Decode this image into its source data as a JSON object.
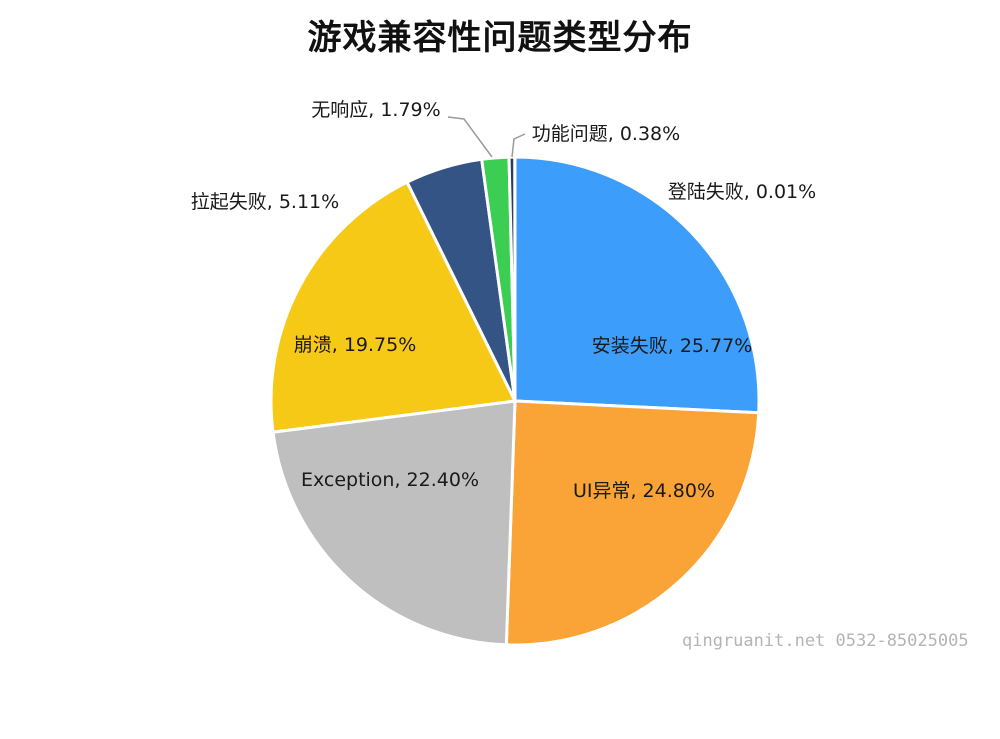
{
  "chart_data": {
    "type": "pie",
    "title": "游戏兼容性问题类型分布",
    "legend": "none",
    "slices": [
      {
        "label": "安装失败",
        "value": 25.77,
        "value_text": "25.77%",
        "color": "#3d9dfb"
      },
      {
        "label": "UI异常",
        "value": 24.8,
        "value_text": "24.80%",
        "color": "#faa337"
      },
      {
        "label": "Exception",
        "value": 22.4,
        "value_text": "22.40%",
        "color": "#bfbfbf"
      },
      {
        "label": "崩溃",
        "value": 19.75,
        "value_text": "19.75%",
        "color": "#f6c917"
      },
      {
        "label": "拉起失败",
        "value": 5.11,
        "value_text": "5.11%",
        "color": "#355486"
      },
      {
        "label": "无响应",
        "value": 1.79,
        "value_text": "1.79%",
        "color": "#3cce53"
      },
      {
        "label": "功能问题",
        "value": 0.38,
        "value_text": "0.38%",
        "color": "#2b3d56"
      },
      {
        "label": "登陆失败",
        "value": 0.01,
        "value_text": "0.01%",
        "color": "#3d9dfb"
      }
    ]
  },
  "watermark": "qingruanit.net 0532-85025005"
}
